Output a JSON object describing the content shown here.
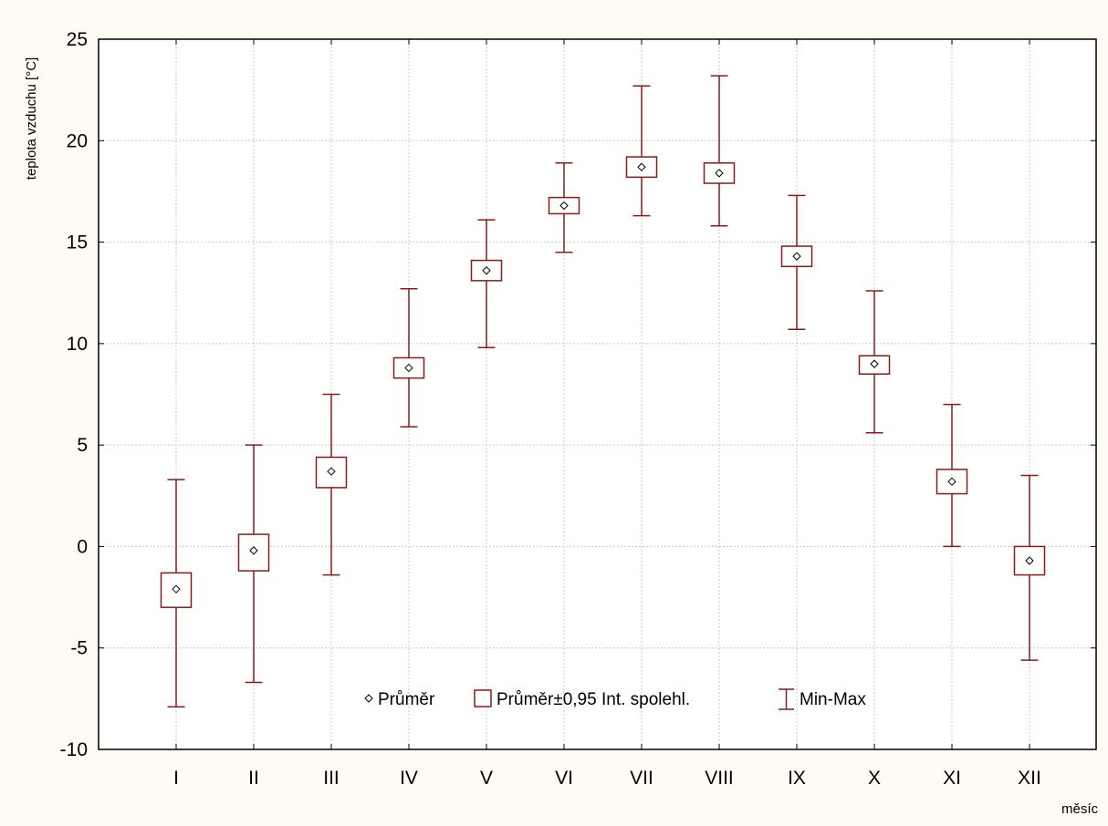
{
  "chart_data": {
    "type": "box",
    "title": "",
    "xlabel": "měsíc",
    "ylabel": "teplota vzduchu [°C]",
    "ylim": [
      -10,
      25
    ],
    "yticks": [
      -10,
      -5,
      0,
      5,
      10,
      15,
      20,
      25
    ],
    "grid": true,
    "legend_position": "bottom-center",
    "colors": {
      "series": "#8b1a1a",
      "grid": "#c8c8c8",
      "frame": "#000000"
    },
    "categories": [
      "I",
      "II",
      "III",
      "IV",
      "V",
      "VI",
      "VII",
      "VIII",
      "IX",
      "X",
      "XI",
      "XII"
    ],
    "series": [
      {
        "name": "Průměr",
        "values": [
          -2.1,
          -0.2,
          3.7,
          8.8,
          13.6,
          16.8,
          18.7,
          18.4,
          14.3,
          9.0,
          3.2,
          -0.7
        ]
      },
      {
        "name": "Průměr±0,95 Int. spolehl.",
        "low": [
          -3.0,
          -1.2,
          2.9,
          8.3,
          13.1,
          16.4,
          18.2,
          17.9,
          13.8,
          8.5,
          2.6,
          -1.4
        ],
        "high": [
          -1.3,
          0.6,
          4.4,
          9.3,
          14.1,
          17.2,
          19.2,
          18.9,
          14.8,
          9.4,
          3.8,
          0.0
        ]
      },
      {
        "name": "Min-Max",
        "min": [
          -7.9,
          -6.7,
          -1.4,
          5.9,
          9.8,
          14.5,
          16.3,
          15.8,
          10.7,
          5.6,
          0.0,
          -5.6
        ],
        "max": [
          3.3,
          5.0,
          7.5,
          12.7,
          16.1,
          18.9,
          22.7,
          23.2,
          17.3,
          12.6,
          7.0,
          3.5
        ]
      }
    ]
  }
}
